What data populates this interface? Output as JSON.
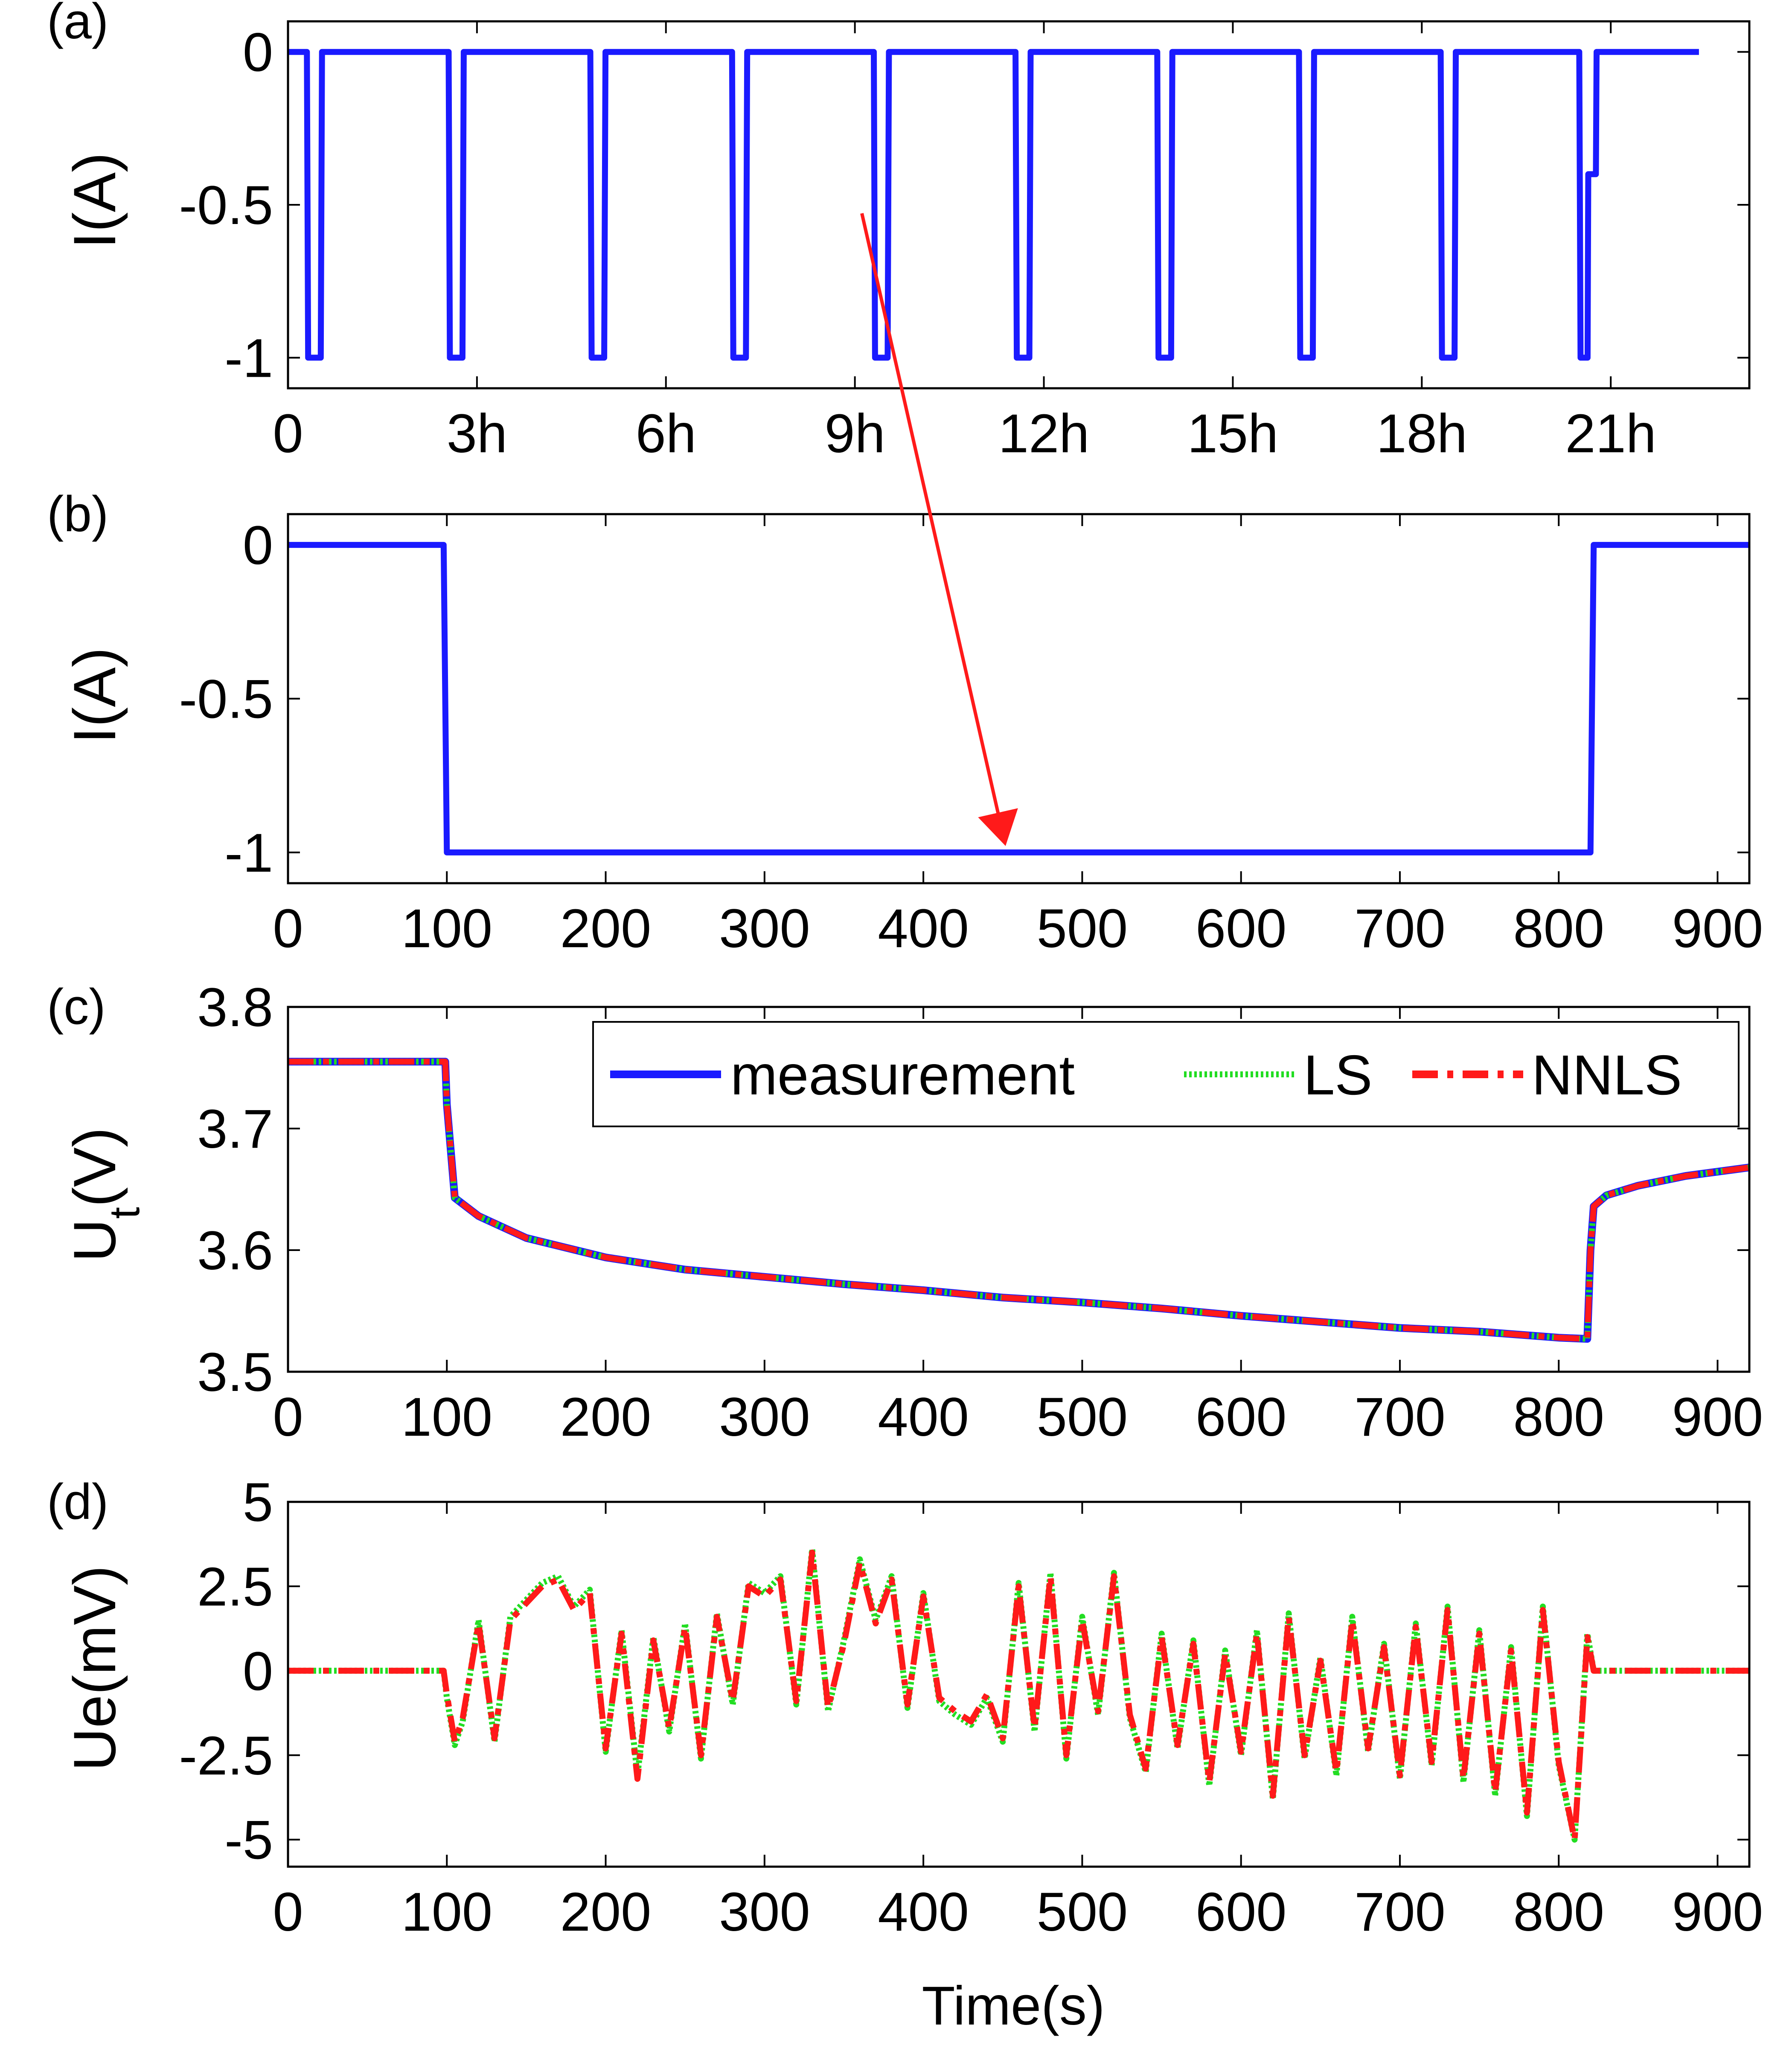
{
  "figure": {
    "x_label": "Time(s)",
    "colors": {
      "measurement": "#1a1aff",
      "ls": "#22dd22",
      "nnls": "#ff1a1a",
      "arrow": "#ff1a1a"
    }
  },
  "chart_data": [
    {
      "panel": "(a)",
      "type": "line",
      "ylabel": "I(A)",
      "xlim": [
        0,
        23.2
      ],
      "ylim": [
        -1.1,
        0.1
      ],
      "x_tick_labels": [
        "0",
        "3h",
        "6h",
        "9h",
        "12h",
        "15h",
        "18h",
        "21h"
      ],
      "y_tick_labels": [
        "0",
        "-0.5",
        "-1"
      ],
      "series": [
        {
          "name": "current",
          "description": "ten discharge pulses of -1 A, each about 0.2 h long",
          "pulses_start_h": [
            0.3,
            2.55,
            4.8,
            7.05,
            9.3,
            11.55,
            13.8,
            16.05,
            18.3,
            20.5
          ],
          "pulse_width_h": 0.22,
          "on_value": -1,
          "off_value": 0,
          "last_step_value": -0.4,
          "end_h": 22.4
        }
      ]
    },
    {
      "panel": "(b)",
      "type": "line",
      "ylabel": "I(A)",
      "xlim": [
        0,
        920
      ],
      "ylim": [
        -1.1,
        0.1
      ],
      "x_tick_labels": [
        "0",
        "100",
        "200",
        "300",
        "400",
        "500",
        "600",
        "700",
        "800",
        "900"
      ],
      "y_tick_labels": [
        "0",
        "-0.5",
        "-1"
      ],
      "series": [
        {
          "name": "current",
          "x": [
            0,
            98,
            100,
            820,
            822,
            920
          ],
          "y": [
            0,
            0,
            -1,
            -1,
            0,
            0
          ]
        }
      ]
    },
    {
      "panel": "(c)",
      "type": "line",
      "ylabel": "U",
      "ylabel_sub": "t",
      "ylabel_tail": "(V)",
      "xlim": [
        0,
        920
      ],
      "ylim": [
        3.5,
        3.8
      ],
      "x_tick_labels": [
        "0",
        "100",
        "200",
        "300",
        "400",
        "500",
        "600",
        "700",
        "800",
        "900"
      ],
      "y_tick_labels": [
        "3.8",
        "3.7",
        "3.6",
        "3.5"
      ],
      "legend": [
        "measurement",
        "LS",
        "NNLS"
      ],
      "legend_position": "top-right",
      "series": [
        {
          "name": "measurement",
          "x": [
            0,
            99,
            100,
            105,
            120,
            150,
            200,
            250,
            300,
            350,
            400,
            450,
            500,
            550,
            600,
            650,
            700,
            750,
            800,
            818,
            820,
            822,
            830,
            850,
            880,
            920
          ],
          "y": [
            3.755,
            3.755,
            3.72,
            3.643,
            3.628,
            3.61,
            3.594,
            3.584,
            3.578,
            3.572,
            3.567,
            3.561,
            3.557,
            3.552,
            3.546,
            3.541,
            3.536,
            3.533,
            3.528,
            3.527,
            3.6,
            3.636,
            3.645,
            3.653,
            3.661,
            3.668
          ]
        },
        {
          "name": "LS",
          "same_as": "measurement"
        },
        {
          "name": "NNLS",
          "same_as": "measurement"
        }
      ]
    },
    {
      "panel": "(d)",
      "type": "line",
      "ylabel": "Ue(mV)",
      "xlim": [
        0,
        920
      ],
      "ylim": [
        -5.8,
        5
      ],
      "x_tick_labels": [
        "0",
        "100",
        "200",
        "300",
        "400",
        "500",
        "600",
        "700",
        "800",
        "900"
      ],
      "y_tick_labels": [
        "5",
        "2.5",
        "0",
        "-2.5",
        "-5"
      ],
      "series": [
        {
          "name": "LS",
          "x": [
            0,
            98,
            100,
            105,
            110,
            120,
            130,
            140,
            150,
            160,
            170,
            180,
            190,
            200,
            210,
            220,
            230,
            240,
            250,
            260,
            270,
            280,
            290,
            300,
            310,
            320,
            330,
            340,
            350,
            360,
            370,
            380,
            390,
            400,
            410,
            420,
            430,
            440,
            450,
            460,
            470,
            480,
            490,
            500,
            510,
            520,
            530,
            540,
            550,
            560,
            570,
            580,
            590,
            600,
            610,
            620,
            630,
            640,
            650,
            660,
            670,
            680,
            690,
            700,
            710,
            720,
            730,
            740,
            750,
            760,
            770,
            780,
            790,
            800,
            810,
            818,
            822,
            920
          ],
          "y": [
            0,
            0,
            -0.8,
            -2.2,
            -1.5,
            1.5,
            -2.1,
            1.6,
            2.1,
            2.6,
            2.8,
            1.9,
            2.4,
            -2.4,
            1.2,
            -3.1,
            1.0,
            -1.8,
            1.4,
            -2.6,
            1.7,
            -1.0,
            2.6,
            2.3,
            2.8,
            -1.0,
            3.6,
            -1.2,
            0.9,
            3.3,
            1.5,
            2.8,
            -1.1,
            2.3,
            -0.9,
            -1.3,
            -1.6,
            -0.8,
            -2.1,
            2.6,
            -1.8,
            2.9,
            -2.6,
            1.6,
            -1.3,
            2.9,
            -1.4,
            -3.0,
            1.1,
            -2.3,
            0.9,
            -3.4,
            0.6,
            -2.5,
            1.2,
            -3.8,
            1.7,
            -2.6,
            0.4,
            -3.1,
            1.6,
            -2.4,
            0.8,
            -3.2,
            1.4,
            -2.8,
            1.9,
            -3.3,
            1.2,
            -3.7,
            0.7,
            -4.3,
            1.9,
            -2.8,
            -5.0,
            1.1,
            0,
            0
          ]
        },
        {
          "name": "NNLS",
          "x": [
            0,
            98,
            100,
            105,
            110,
            120,
            130,
            140,
            150,
            160,
            170,
            180,
            190,
            200,
            210,
            220,
            230,
            240,
            250,
            260,
            270,
            280,
            290,
            300,
            310,
            320,
            330,
            340,
            350,
            360,
            370,
            380,
            390,
            400,
            410,
            420,
            430,
            440,
            450,
            460,
            470,
            480,
            490,
            500,
            510,
            520,
            530,
            540,
            550,
            560,
            570,
            580,
            590,
            600,
            610,
            620,
            630,
            640,
            650,
            660,
            670,
            680,
            690,
            700,
            710,
            720,
            730,
            740,
            750,
            760,
            770,
            780,
            790,
            800,
            810,
            818,
            822,
            920
          ],
          "y": [
            0,
            0,
            -0.7,
            -2.1,
            -1.4,
            1.4,
            -2.0,
            1.5,
            2.0,
            2.5,
            2.7,
            1.8,
            2.3,
            -2.3,
            1.1,
            -3.2,
            0.9,
            -1.7,
            1.3,
            -2.5,
            1.6,
            -0.9,
            2.5,
            2.2,
            2.7,
            -0.9,
            3.5,
            -1.1,
            0.8,
            3.2,
            1.4,
            2.7,
            -1.0,
            2.2,
            -0.8,
            -1.2,
            -1.5,
            -0.7,
            -2.0,
            2.5,
            -1.7,
            2.8,
            -2.5,
            1.5,
            -1.2,
            2.8,
            -1.3,
            -2.9,
            1.0,
            -2.2,
            0.8,
            -3.3,
            0.5,
            -2.4,
            1.1,
            -3.7,
            1.6,
            -2.5,
            0.3,
            -3.0,
            1.5,
            -2.3,
            0.7,
            -3.1,
            1.3,
            -2.7,
            1.8,
            -3.2,
            1.1,
            -3.6,
            0.6,
            -4.2,
            1.8,
            -2.7,
            -5.0,
            1.0,
            0,
            0
          ]
        }
      ]
    }
  ]
}
